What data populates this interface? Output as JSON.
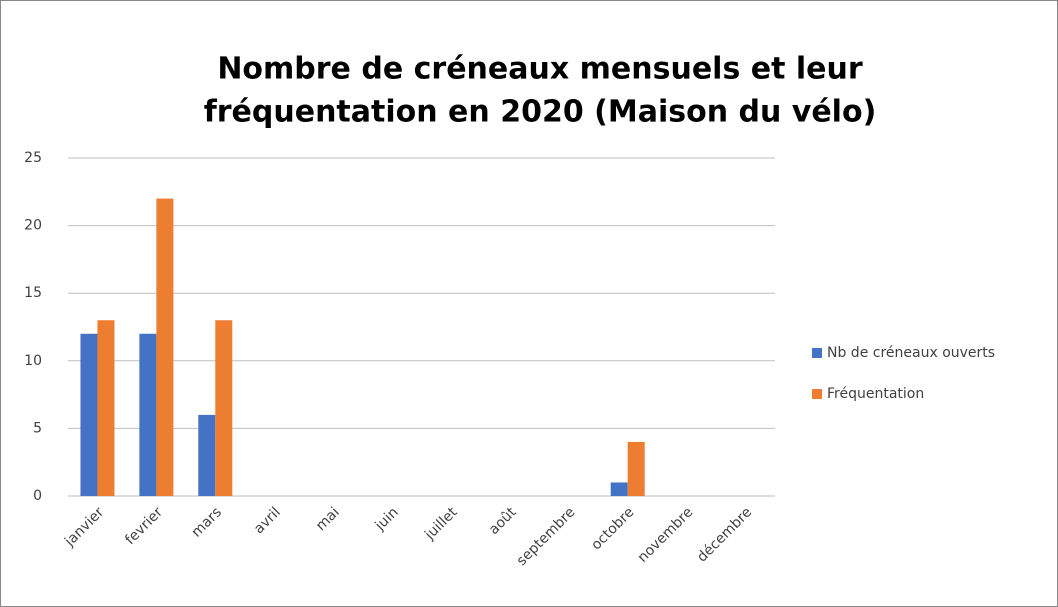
{
  "chart_data": {
    "type": "bar",
    "title": [
      "Nombre de créneaux mensuels et leur",
      "fréquentation en 2020 (Maison du vélo)"
    ],
    "categories": [
      "janvier",
      "fevrier",
      "mars",
      "avril",
      "mai",
      "juin",
      "juillet",
      "août",
      "septembre",
      "octobre",
      "novembre",
      "décembre"
    ],
    "series": [
      {
        "name": "Nb de créneaux ouverts",
        "color": "#4472c4",
        "values": [
          12,
          12,
          6,
          0,
          0,
          0,
          0,
          0,
          0,
          1,
          0,
          0
        ]
      },
      {
        "name": "Fréquentation",
        "color": "#ed7d31",
        "values": [
          13,
          22,
          13,
          0,
          0,
          0,
          0,
          0,
          0,
          4,
          0,
          0
        ]
      }
    ],
    "ylim": [
      0,
      25
    ],
    "yticks": [
      0,
      5,
      10,
      15,
      20,
      25
    ],
    "grid": true,
    "legend": "right"
  }
}
